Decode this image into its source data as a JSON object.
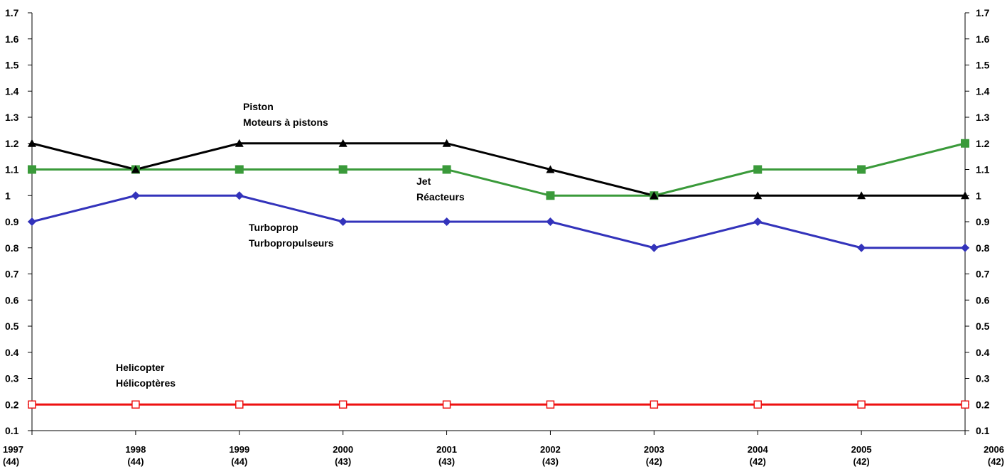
{
  "chart_data": {
    "type": "line",
    "title": "",
    "xlabel": "",
    "ylabel": "",
    "ylim": [
      0.1,
      1.7
    ],
    "yticks": [
      "0.1",
      "0.2",
      "0.3",
      "0.4",
      "0.5",
      "0.6",
      "0.7",
      "0.8",
      "0.9",
      "1",
      "1.1",
      "1.2",
      "1.3",
      "1.4",
      "1.5",
      "1.6",
      "1.7"
    ],
    "grid": false,
    "legend": "none",
    "secondary_y_axis": true,
    "categories": [
      {
        "year": "1997",
        "count": "(44)"
      },
      {
        "year": "1998",
        "count": "(44)"
      },
      {
        "year": "1999",
        "count": "(44)"
      },
      {
        "year": "2000",
        "count": "(43)"
      },
      {
        "year": "2001",
        "count": "(43)"
      },
      {
        "year": "2002",
        "count": "(43)"
      },
      {
        "year": "2003",
        "count": "(42)"
      },
      {
        "year": "2004",
        "count": "(42)"
      },
      {
        "year": "2005",
        "count": "(42)"
      },
      {
        "year": "2006",
        "count": "(42)"
      }
    ],
    "series": [
      {
        "id": "piston",
        "label_lines": [
          "Piston",
          "Moteurs à pistons"
        ],
        "color": "#000000",
        "marker": "triangle",
        "values": [
          1.2,
          1.1,
          1.2,
          1.2,
          1.2,
          1.1,
          1.0,
          1.0,
          1.0,
          1.0
        ]
      },
      {
        "id": "jet",
        "label_lines": [
          "Jet",
          "Réacteurs"
        ],
        "color": "#3a9a3a",
        "marker": "square",
        "values": [
          1.1,
          1.1,
          1.1,
          1.1,
          1.1,
          1.0,
          1.0,
          1.1,
          1.1,
          1.2
        ]
      },
      {
        "id": "turboprop",
        "label_lines": [
          "Turboprop",
          "Turbopropulseurs"
        ],
        "color": "#3333bb",
        "marker": "diamond",
        "values": [
          0.9,
          1.0,
          1.0,
          0.9,
          0.9,
          0.9,
          0.8,
          0.9,
          0.8,
          0.8
        ]
      },
      {
        "id": "helicopter",
        "label_lines": [
          "Helicopter",
          "Hélicoptères"
        ],
        "color": "#ee1111",
        "marker": "square-open",
        "values": [
          0.2,
          0.2,
          0.2,
          0.2,
          0.2,
          0.2,
          0.2,
          0.2,
          0.2,
          0.2
        ]
      }
    ]
  }
}
